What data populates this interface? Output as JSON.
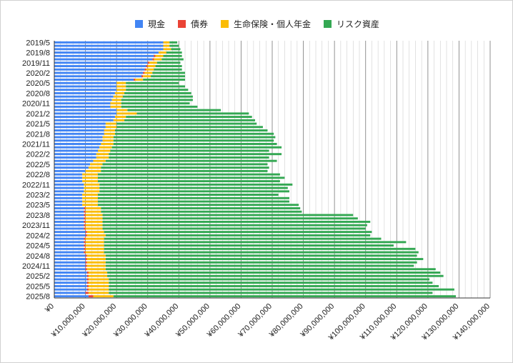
{
  "chart_data": {
    "type": "bar",
    "orientation": "horizontal",
    "stacked": true,
    "legend_position": "top",
    "grid": true,
    "xlim": [
      0,
      140000000
    ],
    "x_ticks": [
      0,
      10000000,
      20000000,
      30000000,
      40000000,
      50000000,
      60000000,
      70000000,
      80000000,
      90000000,
      100000000,
      110000000,
      120000000,
      130000000,
      140000000
    ],
    "x_tick_labels": [
      "¥0",
      "¥10,000,000",
      "¥20,000,000",
      "¥30,000,000",
      "¥40,000,000",
      "¥50,000,000",
      "¥60,000,000",
      "¥70,000,000",
      "¥80,000,000",
      "¥90,000,000",
      "¥100,000,000",
      "¥110,000,000",
      "¥120,000,000",
      "¥130,000,000",
      "¥140,000,000"
    ],
    "category_labels_shown": [
      "2019/5",
      "2019/8",
      "2019/11",
      "2020/2",
      "2020/5",
      "2020/8",
      "2020/11",
      "2021/2",
      "2021/5",
      "2021/8",
      "2021/11",
      "2022/2",
      "2022/5",
      "2022/8",
      "2022/11",
      "2023/2",
      "2023/5",
      "2023/8",
      "2023/11",
      "2024/2",
      "2024/5",
      "2024/8",
      "2024/11",
      "2025/2",
      "2025/5",
      "2025/8"
    ],
    "categories": [
      "2019/5",
      "2019/6",
      "2019/7",
      "2019/8",
      "2019/9",
      "2019/10",
      "2019/11",
      "2019/12",
      "2020/1",
      "2020/2",
      "2020/3",
      "2020/4",
      "2020/5",
      "2020/6",
      "2020/7",
      "2020/8",
      "2020/9",
      "2020/10",
      "2020/11",
      "2020/12",
      "2021/1",
      "2021/2",
      "2021/3",
      "2021/4",
      "2021/5",
      "2021/6",
      "2021/7",
      "2021/8",
      "2021/9",
      "2021/10",
      "2021/11",
      "2021/12",
      "2022/1",
      "2022/2",
      "2022/3",
      "2022/4",
      "2022/5",
      "2022/6",
      "2022/7",
      "2022/8",
      "2022/9",
      "2022/10",
      "2022/11",
      "2022/12",
      "2023/1",
      "2023/2",
      "2023/3",
      "2023/4",
      "2023/5",
      "2023/6",
      "2023/7",
      "2023/8",
      "2023/9",
      "2023/10",
      "2023/11",
      "2023/12",
      "2024/1",
      "2024/2",
      "2024/3",
      "2024/4",
      "2024/5",
      "2024/6",
      "2024/7",
      "2024/8",
      "2024/9",
      "2024/10",
      "2024/11",
      "2024/12",
      "2025/1",
      "2025/2",
      "2025/3",
      "2025/4",
      "2025/5",
      "2025/6",
      "2025/7",
      "2025/8"
    ],
    "series": [
      {
        "name": "現金",
        "color": "#4285f4",
        "values": [
          35000000,
          35000000,
          35000000,
          33500000,
          32000000,
          31500000,
          30000000,
          29500000,
          29000000,
          28500000,
          28000000,
          25500000,
          20000000,
          20000000,
          20000000,
          19500000,
          19000000,
          18500000,
          18000000,
          18000000,
          20000000,
          20000000,
          19500000,
          19000000,
          16500000,
          16500000,
          16000000,
          16000000,
          15500000,
          15500000,
          15000000,
          14500000,
          14000000,
          13500000,
          13500000,
          12500000,
          11500000,
          11000000,
          10000000,
          9000000,
          9000000,
          9000000,
          9500000,
          9500000,
          9500000,
          9000000,
          9000000,
          9000000,
          9000000,
          9500000,
          9500000,
          9500000,
          9500000,
          9500000,
          9500000,
          9500000,
          10000000,
          10000000,
          9500000,
          9500000,
          9500000,
          9500000,
          9500000,
          10000000,
          10000000,
          10000000,
          10000000,
          10000000,
          10500000,
          10500000,
          10500000,
          10500000,
          10500000,
          10500000,
          10000000,
          11000000
        ]
      },
      {
        "name": "債券",
        "color": "#ea4335",
        "values": [
          0,
          0,
          0,
          0,
          500000,
          500000,
          500000,
          500000,
          500000,
          500000,
          500000,
          500000,
          0,
          0,
          0,
          0,
          0,
          0,
          0,
          0,
          0,
          0,
          0,
          0,
          0,
          0,
          0,
          0,
          0,
          0,
          0,
          0,
          0,
          0,
          0,
          0,
          0,
          0,
          0,
          0,
          0,
          0,
          0,
          0,
          0,
          0,
          0,
          0,
          0,
          500000,
          500000,
          500000,
          500000,
          500000,
          500000,
          500000,
          500000,
          500000,
          500000,
          500000,
          500000,
          500000,
          500000,
          500000,
          500000,
          500000,
          500000,
          500000,
          500000,
          500000,
          500000,
          500000,
          500000,
          500000,
          1000000,
          1500000
        ]
      },
      {
        "name": "生命保険・個人年金",
        "color": "#fbbc04",
        "values": [
          2000000,
          2000000,
          2500000,
          2500000,
          2500000,
          2500000,
          2500000,
          2500000,
          2500000,
          2500000,
          2500000,
          2500000,
          3000000,
          3000000,
          3000000,
          3000000,
          3000000,
          3000000,
          3500000,
          3500000,
          3500000,
          6500000,
          3500000,
          3500000,
          3500000,
          3500000,
          3500000,
          3500000,
          3500000,
          3500000,
          4000000,
          4000000,
          4000000,
          4000000,
          4000000,
          4000000,
          4000000,
          4000000,
          5000000,
          5000000,
          5000000,
          5000000,
          5000000,
          5000000,
          5000000,
          5000000,
          5000000,
          5000000,
          5000000,
          5000000,
          5000000,
          5500000,
          5500000,
          5500000,
          5500000,
          5500000,
          5500000,
          6000000,
          6000000,
          6000000,
          6000000,
          6000000,
          6000000,
          6000000,
          6000000,
          6000000,
          6000000,
          6000000,
          6000000,
          6000000,
          6500000,
          6500000,
          6500000,
          6500000,
          6500000,
          6500000
        ]
      },
      {
        "name": "リスク資産",
        "color": "#34a853",
        "values": [
          2500000,
          3000000,
          3000000,
          5000000,
          6000000,
          7000000,
          7500000,
          8500000,
          9000000,
          10500000,
          11000000,
          13500000,
          17000000,
          19000000,
          20000000,
          21500000,
          22500000,
          23000000,
          22000000,
          24500000,
          30000000,
          36000000,
          40500000,
          42000000,
          45000000,
          47000000,
          49000000,
          51000000,
          52000000,
          51500000,
          52500000,
          54500000,
          51000000,
          55500000,
          51500000,
          55000000,
          53000000,
          54000000,
          53500000,
          58500000,
          60000000,
          58500000,
          62000000,
          60500000,
          61000000,
          58000000,
          61500000,
          61500000,
          64500000,
          64000000,
          64500000,
          80500000,
          82000000,
          86000000,
          85000000,
          84500000,
          86000000,
          85000000,
          89000000,
          97000000,
          93000000,
          100000000,
          101000000,
          100000000,
          102000000,
          100000000,
          99000000,
          106000000,
          107000000,
          108000000,
          103000000,
          104000000,
          106000000,
          111000000,
          104000000,
          110000000
        ]
      }
    ]
  }
}
